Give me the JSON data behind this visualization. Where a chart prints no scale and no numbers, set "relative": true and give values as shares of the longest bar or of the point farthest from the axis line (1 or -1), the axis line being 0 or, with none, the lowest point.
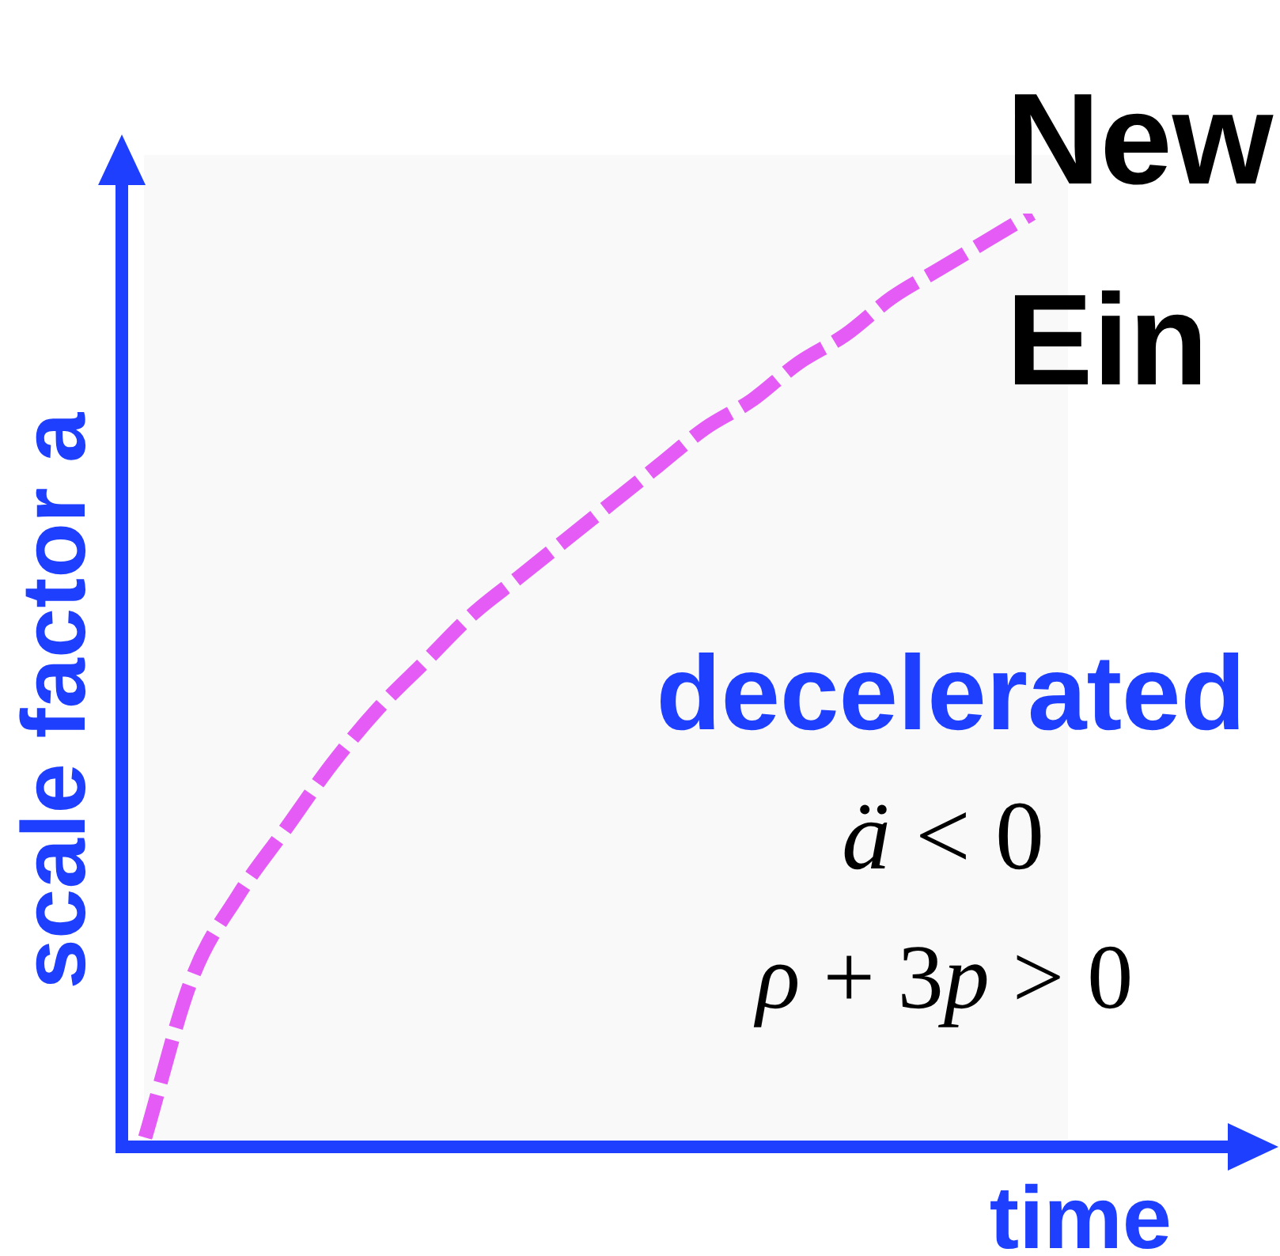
{
  "chart_data": {
    "type": "line",
    "relative": true,
    "tick_labels": false,
    "line_style": "dashed",
    "xlabel": "time",
    "ylabel": "scale factor a",
    "annotations": [
      "New",
      "Ein",
      "decelerated",
      "ä < 0",
      "ρ + 3p > 0"
    ],
    "categories": [
      null,
      null,
      null,
      null,
      null,
      null,
      null,
      null,
      null,
      null,
      null,
      null,
      null,
      null,
      null,
      null,
      null,
      null,
      null,
      null
    ],
    "series": [
      {
        "color": "#e45cf5",
        "values": [
          0.01,
          0.18,
          0.27,
          0.34,
          0.41,
          0.47,
          0.52,
          0.57,
          0.61,
          0.65,
          0.69,
          0.73,
          0.77,
          0.8,
          0.84,
          0.87,
          0.91,
          0.94,
          0.97,
          1
        ]
      }
    ]
  }
}
